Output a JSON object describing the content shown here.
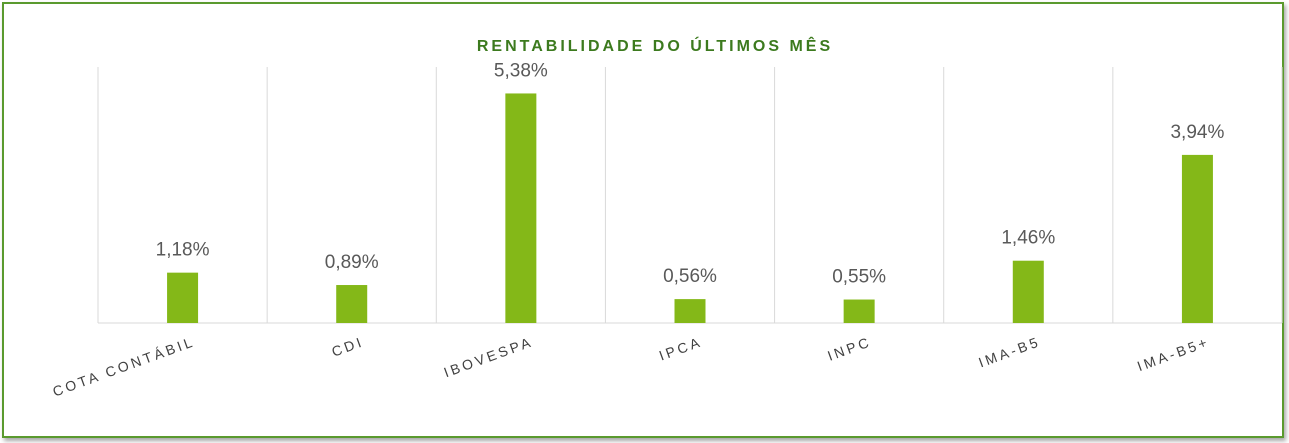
{
  "chart_data": {
    "type": "bar",
    "title": "RENTABILIDADE DO ÚLTIMOS MÊS",
    "categories": [
      "COTA CONTÁBIL",
      "CDI",
      "IBOVESPA",
      "IPCA",
      "INPC",
      "IMA-B5",
      "IMA-B5+"
    ],
    "values": [
      1.18,
      0.89,
      5.38,
      0.56,
      0.55,
      1.46,
      3.94
    ],
    "value_labels": [
      "1,18%",
      "0,89%",
      "5,38%",
      "0,56%",
      "0,55%",
      "1,46%",
      "3,94%"
    ],
    "color": "#84b818",
    "ylim": [
      0,
      6
    ]
  }
}
